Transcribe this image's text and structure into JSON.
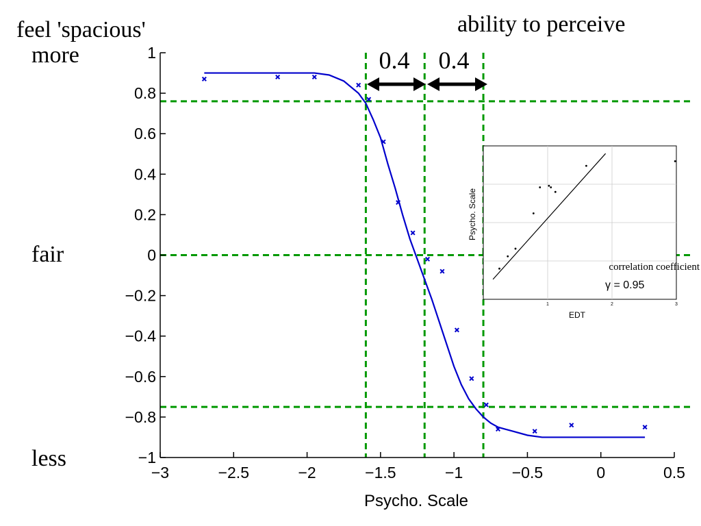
{
  "chart_data": {
    "type": "scatter",
    "title": "",
    "xlabel": "Psycho. Scale",
    "ylabel": "",
    "xlim": [
      -3,
      0.5
    ],
    "ylim": [
      -1,
      1
    ],
    "x_ticks": [
      -3,
      -2.5,
      -2,
      -1.5,
      -1,
      -0.5,
      0,
      0.5
    ],
    "x_tick_labels": [
      "−3",
      "−2.5",
      "−2",
      "−1.5",
      "−1",
      "−0.5",
      "0",
      "0.5"
    ],
    "y_ticks": [
      1,
      0.8,
      0.6,
      0.4,
      0.2,
      0,
      -0.2,
      -0.4,
      -0.6,
      -0.8,
      -1
    ],
    "y_tick_labels": [
      "1",
      "0.8",
      "0.6",
      "0.4",
      "0.2",
      "0",
      "−0.2",
      "−0.4",
      "−0.6",
      "−0.8",
      "−1"
    ],
    "grid": false,
    "series": [
      {
        "type": "scatter",
        "marker": "x",
        "color": "#0000cc",
        "x": [
          -2.7,
          -2.2,
          -1.95,
          -1.65,
          -1.58,
          -1.48,
          -1.38,
          -1.28,
          -1.18,
          -1.08,
          -0.98,
          -0.88,
          -0.78,
          -0.7,
          -0.45,
          -0.2,
          0.3
        ],
        "y": [
          0.87,
          0.88,
          0.88,
          0.84,
          0.77,
          0.56,
          0.26,
          0.11,
          -0.02,
          -0.08,
          -0.37,
          -0.61,
          -0.74,
          -0.86,
          -0.87,
          -0.84,
          -0.85
        ]
      },
      {
        "type": "line",
        "color": "#0000cc",
        "x": [
          -2.7,
          -2.5,
          -2.3,
          -2.1,
          -1.95,
          -1.85,
          -1.75,
          -1.65,
          -1.6,
          -1.55,
          -1.5,
          -1.45,
          -1.4,
          -1.35,
          -1.3,
          -1.25,
          -1.2,
          -1.15,
          -1.1,
          -1.05,
          -1.0,
          -0.95,
          -0.9,
          -0.85,
          -0.8,
          -0.75,
          -0.7,
          -0.65,
          -0.6,
          -0.5,
          -0.4,
          -0.3,
          -0.1,
          0.1,
          0.3
        ],
        "y": [
          0.9,
          0.9,
          0.9,
          0.9,
          0.9,
          0.89,
          0.86,
          0.8,
          0.75,
          0.67,
          0.58,
          0.45,
          0.33,
          0.2,
          0.08,
          -0.02,
          -0.12,
          -0.22,
          -0.33,
          -0.44,
          -0.55,
          -0.64,
          -0.71,
          -0.76,
          -0.8,
          -0.83,
          -0.85,
          -0.86,
          -0.87,
          -0.89,
          -0.9,
          -0.9,
          -0.9,
          -0.9,
          -0.9
        ]
      }
    ],
    "reference_lines": {
      "color": "#009900",
      "horizontal_y": [
        0.76,
        0.0,
        -0.75
      ],
      "vertical_x": [
        -1.6,
        -1.2,
        -0.8
      ]
    },
    "annotations": {
      "left_title": "feel 'spacious'",
      "right_title": "ability to perceive",
      "more": "more",
      "fair": "fair",
      "less": "less",
      "gap_left": "0.4",
      "gap_right": "0.4"
    },
    "inset": {
      "type": "scatter",
      "xlabel": "EDT",
      "ylabel": "Psycho. Scale",
      "x_tick_labels": [
        "1",
        "2",
        "3"
      ],
      "points_x": [
        0.25,
        0.38,
        0.5,
        0.78,
        0.88,
        1.02,
        1.05,
        1.12,
        1.6,
        2.98
      ],
      "points_y": [
        0.2,
        0.28,
        0.33,
        0.56,
        0.73,
        0.74,
        0.73,
        0.7,
        0.87,
        0.9
      ],
      "fit_x": [
        0.15,
        1.9
      ],
      "fit_y": [
        0.13,
        0.95
      ],
      "note": "correlation coefficient",
      "gamma": "γ = 0.95"
    }
  }
}
